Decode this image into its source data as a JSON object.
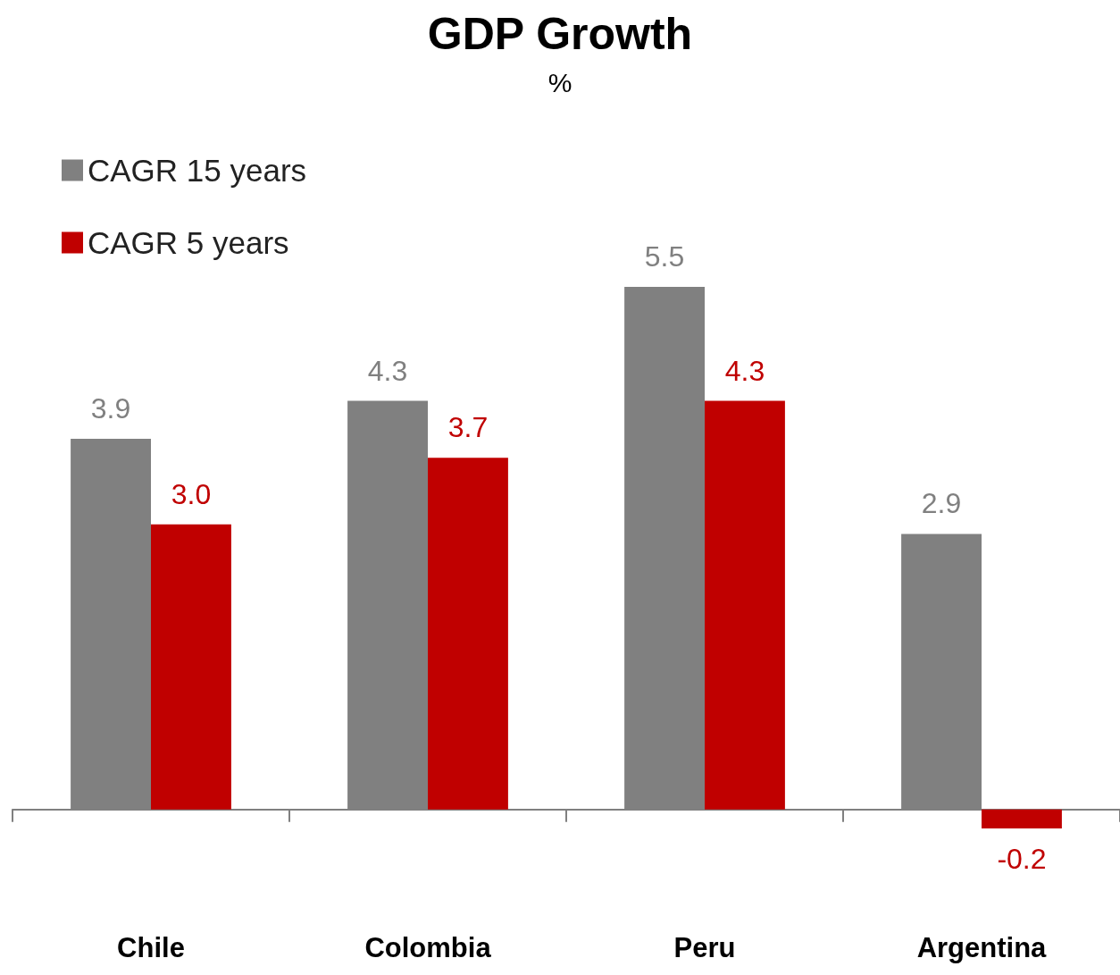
{
  "chart_data": {
    "type": "bar",
    "title": "GDP Growth",
    "subtitle": "%",
    "categories": [
      "Chile",
      "Colombia",
      "Peru",
      "Argentina"
    ],
    "series": [
      {
        "name": "CAGR 15 years",
        "color": "#808080",
        "values": [
          3.9,
          4.3,
          5.5,
          2.9
        ],
        "value_labels": [
          "3.9",
          "4.3",
          "5.5",
          "2.9"
        ]
      },
      {
        "name": "CAGR 5 years",
        "color": "#c00000",
        "values": [
          3.0,
          3.7,
          4.3,
          -0.2
        ],
        "value_labels": [
          "3.0",
          "3.7",
          "4.3",
          "-0.2"
        ]
      }
    ],
    "legend": "top left"
  }
}
